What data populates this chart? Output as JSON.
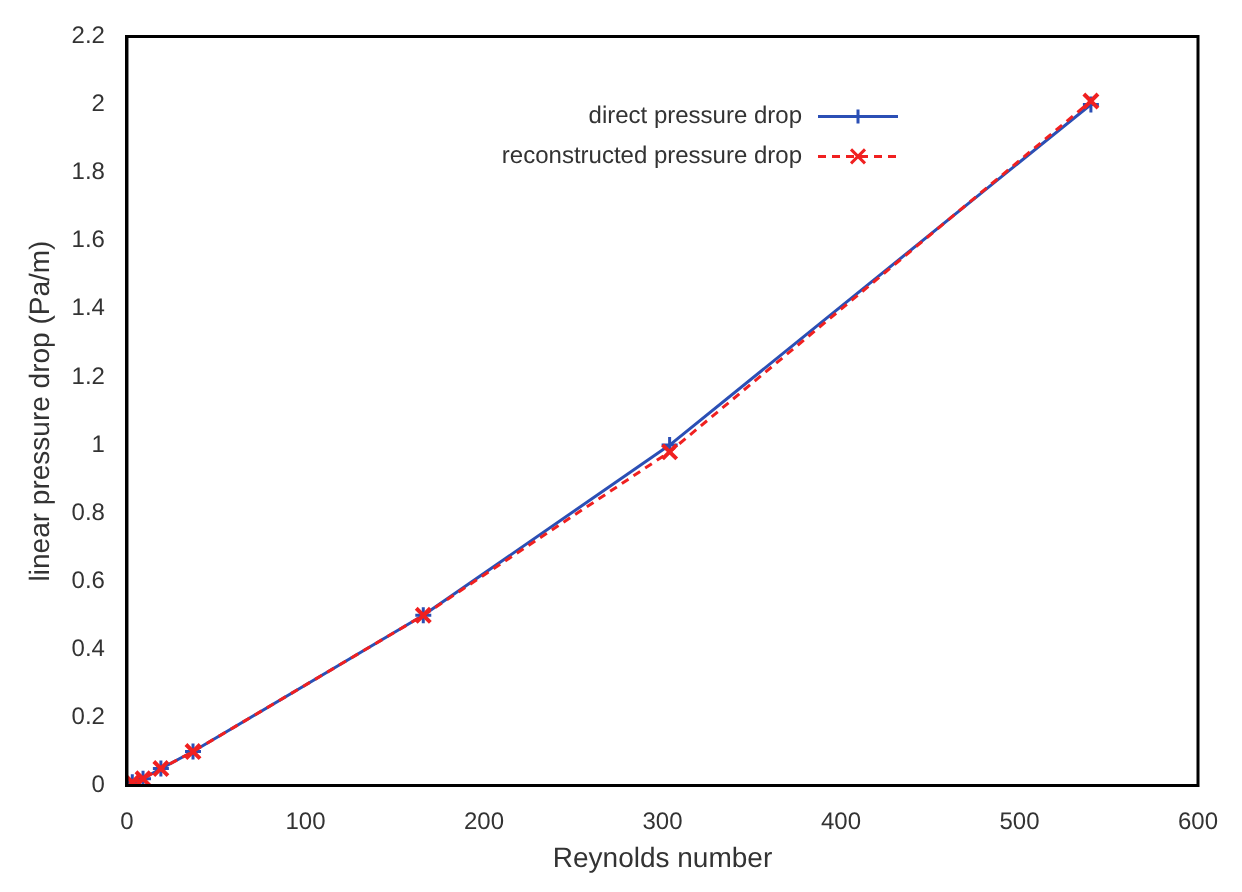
{
  "chart_data": {
    "type": "line",
    "xlabel": "Reynolds number",
    "ylabel": "linear pressure drop (Pa/m)",
    "xlim": [
      0,
      600
    ],
    "xticks": [
      0,
      100,
      200,
      300,
      400,
      500,
      600
    ],
    "ylim": [
      0,
      2.2
    ],
    "yticks": [
      0,
      0.2,
      0.4,
      0.6,
      0.8,
      1,
      1.2,
      1.4,
      1.6,
      1.8,
      2,
      2.2
    ],
    "grid": false,
    "legend": "top right",
    "marker": "cross",
    "series": [
      {
        "name": "direct pressure drop",
        "color": "#2b4fb5",
        "line_style": "solid",
        "x": [
          3,
          9,
          19,
          37,
          166,
          304,
          540
        ],
        "values": [
          0.01,
          0.02,
          0.05,
          0.1,
          0.5,
          1.0,
          2.0
        ]
      },
      {
        "name": "reconstructed pressure drop",
        "color": "#f02020",
        "line_style": "dashed",
        "x": [
          3,
          9,
          19,
          37,
          166,
          304,
          540
        ],
        "values": [
          0.01,
          0.02,
          0.05,
          0.1,
          0.5,
          0.98,
          2.01
        ]
      }
    ]
  }
}
